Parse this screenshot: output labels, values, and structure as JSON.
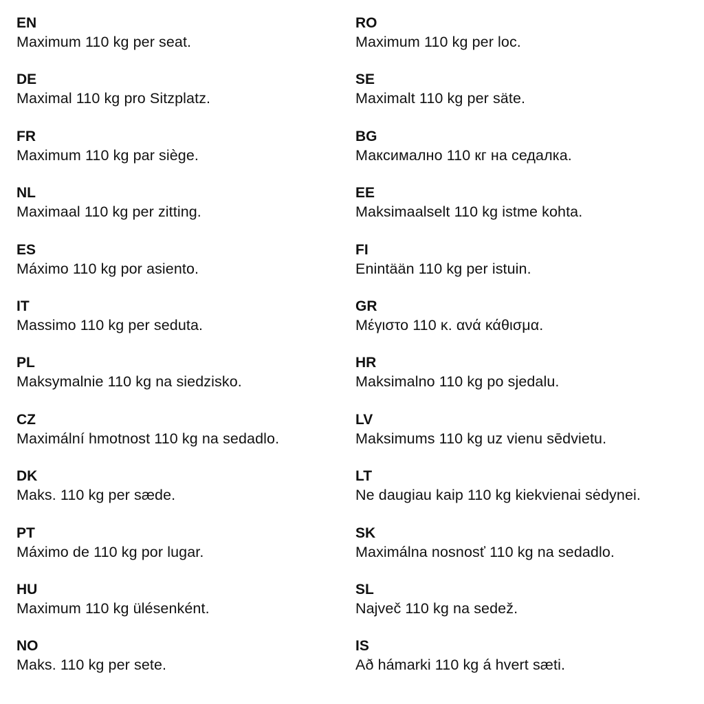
{
  "left": [
    {
      "code": "EN",
      "text": "Maximum 110 kg per seat."
    },
    {
      "code": "DE",
      "text": "Maximal 110 kg pro Sitzplatz."
    },
    {
      "code": "FR",
      "text": "Maximum 110 kg par siège."
    },
    {
      "code": "NL",
      "text": "Maximaal 110 kg per zitting."
    },
    {
      "code": "ES",
      "text": "Máximo 110 kg por asiento."
    },
    {
      "code": "IT",
      "text": "Massimo 110 kg per seduta."
    },
    {
      "code": "PL",
      "text": "Maksymalnie 110 kg na siedzisko."
    },
    {
      "code": "CZ",
      "text": "Maximální hmotnost 110 kg na sedadlo."
    },
    {
      "code": "DK",
      "text": "Maks. 110 kg per sæde."
    },
    {
      "code": "PT",
      "text": "Máximo de 110 kg por lugar."
    },
    {
      "code": "HU",
      "text": "Maximum 110 kg ülésenként."
    },
    {
      "code": "NO",
      "text": "Maks. 110 kg per sete."
    }
  ],
  "right": [
    {
      "code": "RO",
      "text": "Maximum 110 kg per loc."
    },
    {
      "code": "SE",
      "text": "Maximalt 110 kg per säte."
    },
    {
      "code": "BG",
      "text": "Максимално 110 кг на седалка."
    },
    {
      "code": "EE",
      "text": "Maksimaalselt 110 kg istme kohta."
    },
    {
      "code": "FI",
      "text": "Enintään 110 kg per istuin."
    },
    {
      "code": "GR",
      "text": "Μέγιστο 110 κ. ανά κάθισμα."
    },
    {
      "code": "HR",
      "text": "Maksimalno 110 kg po sjedalu."
    },
    {
      "code": "LV",
      "text": "Maksimums 110 kg uz vienu sēdvietu."
    },
    {
      "code": "LT",
      "text": "Ne daugiau kaip 110 kg kiekvienai sėdynei."
    },
    {
      "code": "SK",
      "text": "Maximálna nosnosť 110 kg na sedadlo."
    },
    {
      "code": "SL",
      "text": "Največ 110 kg na sedež."
    },
    {
      "code": "IS",
      "text": "Að hámarki 110 kg á hvert sæti."
    }
  ]
}
